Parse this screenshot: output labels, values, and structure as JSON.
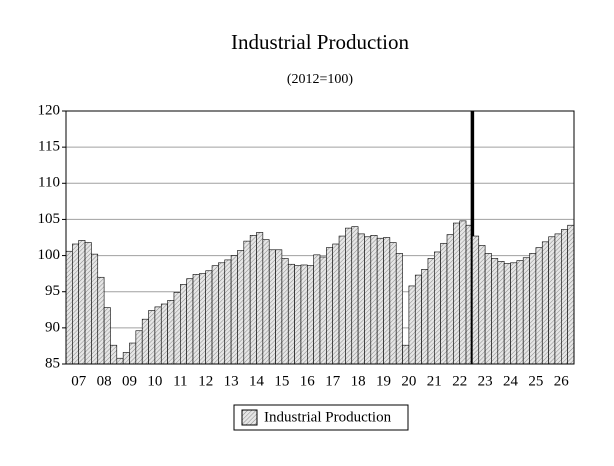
{
  "chart_data": {
    "type": "bar",
    "title": "Industrial Production",
    "subtitle": "(2012=100)",
    "categories": [
      "07",
      "08",
      "09",
      "10",
      "11",
      "12",
      "13",
      "14",
      "15",
      "16",
      "17",
      "18",
      "19",
      "20",
      "21",
      "22",
      "23",
      "24",
      "25",
      "26"
    ],
    "series": [
      {
        "name": "Industrial Production",
        "color": "#d9d9d9",
        "values": [
          [
            100.6,
            101.6,
            102.1,
            101.8
          ],
          [
            100.2,
            97.0,
            92.8,
            87.6
          ],
          [
            85.8,
            86.6,
            87.9,
            89.6
          ],
          [
            91.2,
            92.4,
            92.9,
            93.3
          ],
          [
            93.8,
            94.9,
            96.0,
            96.8
          ],
          [
            97.4,
            97.5,
            97.9,
            98.6
          ],
          [
            99.0,
            99.4,
            100.0,
            100.7
          ],
          [
            102.0,
            102.8,
            103.2,
            102.2
          ],
          [
            100.8,
            100.8,
            99.6,
            98.8
          ],
          [
            98.6,
            98.7,
            98.6,
            100.1
          ],
          [
            99.8,
            101.1,
            101.6,
            102.7
          ],
          [
            103.8,
            104.0,
            103.0,
            102.6
          ],
          [
            102.8,
            102.4,
            102.5,
            101.8
          ],
          [
            100.3,
            87.6,
            95.8,
            97.3
          ],
          [
            98.1,
            99.6,
            100.5,
            101.7
          ],
          [
            102.9,
            104.5,
            104.8,
            104.2
          ],
          [
            102.7,
            101.4,
            100.3,
            99.6
          ],
          [
            99.2,
            98.9,
            99.0,
            99.3
          ],
          [
            99.7,
            100.3,
            101.1,
            101.9
          ],
          [
            102.6,
            103.0,
            103.6,
            104.2
          ]
        ]
      }
    ],
    "vline_after_category": "22",
    "ylim": [
      85,
      120
    ],
    "yticks": [
      85,
      90,
      95,
      100,
      105,
      110,
      115,
      120
    ],
    "grid": true
  }
}
